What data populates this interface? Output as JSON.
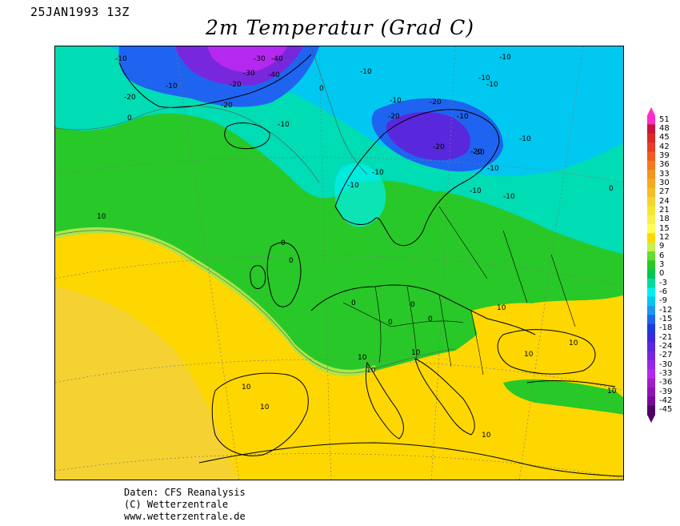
{
  "header": {
    "datetime": "25JAN1993 13Z",
    "title": "2m Temperatur (Grad C)"
  },
  "footer": {
    "line1": "Daten: CFS Reanalysis",
    "line2": "(C) Wetterzentrale",
    "line3": "www.wetterzentrale.de"
  },
  "legend": {
    "labels": [
      "51",
      "48",
      "45",
      "42",
      "39",
      "36",
      "33",
      "30",
      "27",
      "24",
      "21",
      "18",
      "15",
      "12",
      "9",
      "6",
      "3",
      "0",
      "-3",
      "-6",
      "-9",
      "-12",
      "-15",
      "-18",
      "-21",
      "-24",
      "-27",
      "-30",
      "-33",
      "-36",
      "-39",
      "-42",
      "-45"
    ],
    "colors": [
      "#ff2dc8",
      "#c8143c",
      "#dc2828",
      "#e63c28",
      "#f05a1e",
      "#f5781e",
      "#f5961e",
      "#f5aa1e",
      "#f5be28",
      "#f5d232",
      "#f5e632",
      "#faf04b",
      "#ffff55",
      "#ffd700",
      "#c8f050",
      "#64dc32",
      "#28c828",
      "#00c850",
      "#00dca0",
      "#00f0f0",
      "#00c8f0",
      "#1e96f0",
      "#1e64f0",
      "#1e3cdc",
      "#3c28dc",
      "#5a28dc",
      "#7828dc",
      "#9628e6",
      "#b428f0",
      "#a01ec8",
      "#8c14b4",
      "#780a96",
      "#500064"
    ]
  },
  "map_labels": {
    "isotherms": [
      "-10",
      "-10",
      "-20",
      "-30",
      "-40",
      "-30",
      "-40",
      "-20",
      "-10",
      "-20",
      "0",
      "-10",
      "0",
      "-10",
      "-10",
      "-10",
      "-10",
      "-20",
      "-20",
      "-10",
      "-20",
      "-10",
      "-10",
      "-30",
      "-20",
      "-10",
      "-10",
      "-10",
      "-10",
      "0",
      "10",
      "0",
      "0",
      "0",
      "0",
      "0",
      "0",
      "10",
      "10",
      "10",
      "10",
      "10",
      "10",
      "10",
      "10",
      "10",
      "10"
    ]
  },
  "colors": {
    "sea_warm": "#f5c83c",
    "land_warm": "#ffd700",
    "mild": "#c8f050",
    "cool": "#28c828",
    "cold": "#00dcb4",
    "colder": "#00c8f0",
    "very_cold": "#1e64f0",
    "extreme": "#7828dc"
  }
}
